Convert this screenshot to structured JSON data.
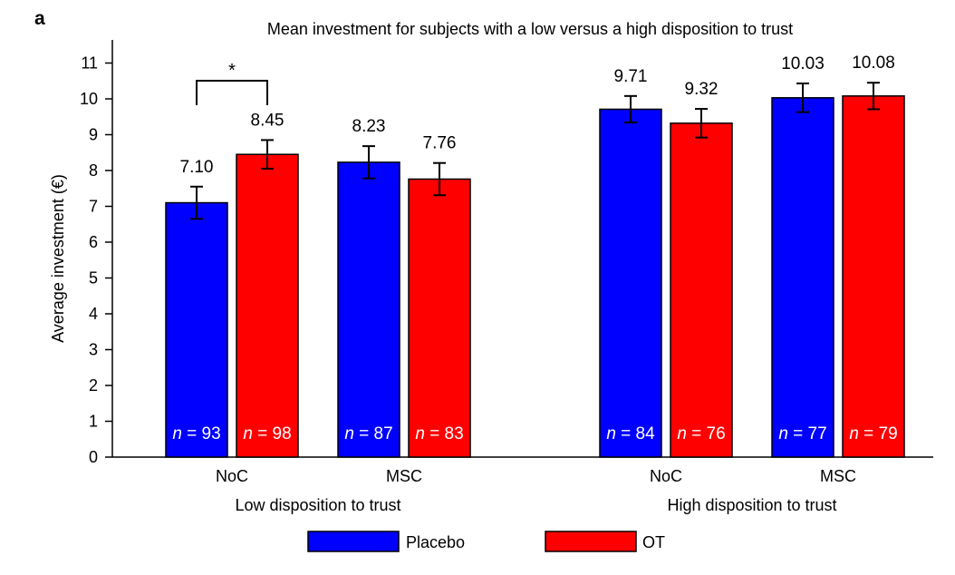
{
  "panel_label": "a",
  "chart_data": {
    "type": "bar",
    "title": "Mean investment for subjects with a low versus a high disposition to trust",
    "ylabel": "Average investment (€)",
    "xlabel": "",
    "ylim": [
      0,
      11.5
    ],
    "yticks": [
      "0",
      "1",
      "2",
      "3",
      "4",
      "5",
      "6",
      "7",
      "8",
      "9",
      "10",
      "11"
    ],
    "groups": [
      {
        "label": "Low disposition to trust",
        "categories": [
          {
            "label": "NoC",
            "bars": [
              {
                "series": "Placebo",
                "value": 7.1,
                "value_label": "7.10",
                "error": 0.45,
                "n": "93"
              },
              {
                "series": "OT",
                "value": 8.45,
                "value_label": "8.45",
                "error": 0.4,
                "n": "98"
              }
            ]
          },
          {
            "label": "MSC",
            "bars": [
              {
                "series": "Placebo",
                "value": 8.23,
                "value_label": "8.23",
                "error": 0.45,
                "n": "87"
              },
              {
                "series": "OT",
                "value": 7.76,
                "value_label": "7.76",
                "error": 0.45,
                "n": "83"
              }
            ]
          }
        ]
      },
      {
        "label": "High disposition to trust",
        "categories": [
          {
            "label": "NoC",
            "bars": [
              {
                "series": "Placebo",
                "value": 9.71,
                "value_label": "9.71",
                "error": 0.37,
                "n": "84"
              },
              {
                "series": "OT",
                "value": 9.32,
                "value_label": "9.32",
                "error": 0.4,
                "n": "76"
              }
            ]
          },
          {
            "label": "MSC",
            "bars": [
              {
                "series": "Placebo",
                "value": 10.03,
                "value_label": "10.03",
                "error": 0.4,
                "n": "77"
              },
              {
                "series": "OT",
                "value": 10.08,
                "value_label": "10.08",
                "error": 0.37,
                "n": "79"
              }
            ]
          }
        ]
      }
    ],
    "series": [
      {
        "name": "Placebo",
        "color": "#0000ff"
      },
      {
        "name": "OT",
        "color": "#ff0000"
      }
    ],
    "n_prefix": "n",
    "n_separator": " = ",
    "significance": {
      "marker": "*",
      "group": 0,
      "category": 0
    },
    "legend": {
      "position": "bottom",
      "items": [
        "Placebo",
        "OT"
      ]
    }
  }
}
